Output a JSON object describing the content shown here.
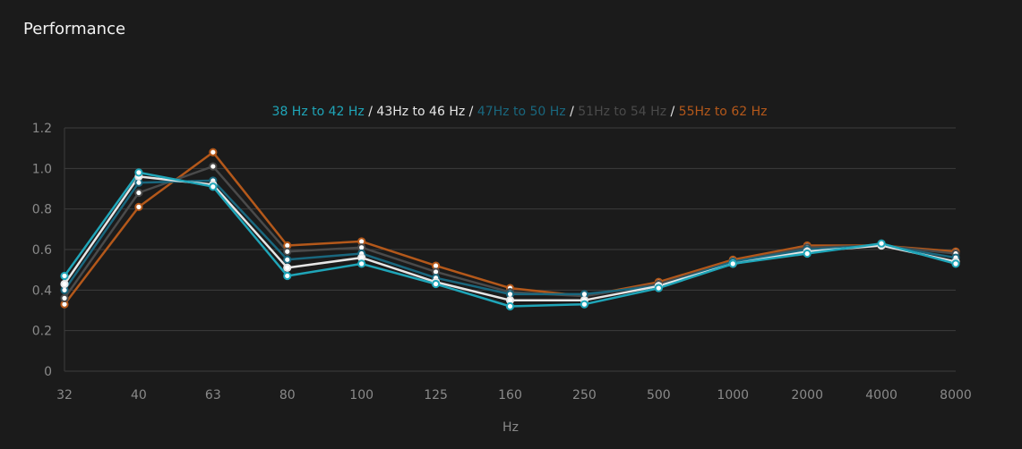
{
  "panel": {
    "title": "Performance"
  },
  "chart_data": {
    "type": "line",
    "title": "",
    "xlabel": "Hz",
    "ylabel": "",
    "ylim": [
      0,
      1.2
    ],
    "yticks": [
      "0",
      "0.2",
      "0.4",
      "0.6",
      "0.8",
      "1.0",
      "1.2"
    ],
    "categories": [
      "32",
      "40",
      "63",
      "80",
      "100",
      "125",
      "160",
      "250",
      "500",
      "1000",
      "2000",
      "4000",
      "8000"
    ],
    "legend_separator": " / ",
    "series": [
      {
        "name": "55Hz to 62 Hz",
        "color": "#b4581a",
        "values": [
          0.33,
          0.81,
          1.08,
          0.62,
          0.64,
          0.52,
          0.41,
          0.37,
          0.44,
          0.55,
          0.62,
          0.62,
          0.59
        ]
      },
      {
        "name": "51Hz to 54 Hz",
        "color": "#4a4a4a",
        "values": [
          0.36,
          0.88,
          1.01,
          0.59,
          0.61,
          0.49,
          0.39,
          0.37,
          0.43,
          0.54,
          0.61,
          0.62,
          0.58
        ]
      },
      {
        "name": "47Hz to 50 Hz",
        "color": "#19677e",
        "values": [
          0.4,
          0.93,
          0.94,
          0.55,
          0.58,
          0.46,
          0.38,
          0.38,
          0.42,
          0.54,
          0.6,
          0.62,
          0.56
        ]
      },
      {
        "name": "43Hz to 46 Hz",
        "color": "#e6e6e6",
        "values": [
          0.43,
          0.96,
          0.92,
          0.51,
          0.56,
          0.44,
          0.35,
          0.35,
          0.42,
          0.53,
          0.59,
          0.62,
          0.54
        ]
      },
      {
        "name": "38 Hz to 42 Hz",
        "color": "#1fa5b8",
        "values": [
          0.47,
          0.98,
          0.91,
          0.47,
          0.53,
          0.43,
          0.32,
          0.33,
          0.41,
          0.53,
          0.58,
          0.63,
          0.53
        ]
      }
    ],
    "legend_order": [
      4,
      3,
      2,
      1,
      0
    ],
    "grid": true,
    "legend_position": "top-center"
  }
}
